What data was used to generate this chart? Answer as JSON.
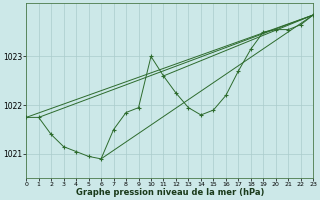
{
  "xlabel": "Graphe pression niveau de la mer (hPa)",
  "bg_color": "#cce8e8",
  "grid_color": "#aacccc",
  "line_color": "#2d6b2d",
  "x_min": 0,
  "x_max": 23,
  "y_min": 1020.5,
  "y_max": 1024.1,
  "yticks": [
    1021,
    1022,
    1023
  ],
  "xticks": [
    0,
    1,
    2,
    3,
    4,
    5,
    6,
    7,
    8,
    9,
    10,
    11,
    12,
    13,
    14,
    15,
    16,
    17,
    18,
    19,
    20,
    21,
    22,
    23
  ],
  "series": [
    [
      0,
      1021.75
    ],
    [
      1,
      1021.75
    ],
    [
      2,
      1021.4
    ],
    [
      3,
      1021.15
    ],
    [
      4,
      1021.05
    ],
    [
      5,
      1020.95
    ],
    [
      6,
      1020.9
    ],
    [
      7,
      1021.5
    ],
    [
      8,
      1021.85
    ],
    [
      9,
      1021.95
    ],
    [
      10,
      1023.0
    ],
    [
      11,
      1022.6
    ],
    [
      12,
      1022.25
    ],
    [
      13,
      1021.95
    ],
    [
      14,
      1021.8
    ],
    [
      15,
      1021.9
    ],
    [
      16,
      1022.2
    ],
    [
      17,
      1022.7
    ],
    [
      18,
      1023.15
    ],
    [
      19,
      1023.5
    ],
    [
      20,
      1023.55
    ],
    [
      21,
      1023.55
    ],
    [
      22,
      1023.65
    ],
    [
      23,
      1023.85
    ]
  ],
  "straight_lines": [
    [
      [
        0,
        1021.75
      ],
      [
        23,
        1023.85
      ]
    ],
    [
      [
        1,
        1021.75
      ],
      [
        23,
        1023.85
      ]
    ],
    [
      [
        6,
        1020.9
      ],
      [
        23,
        1023.85
      ]
    ],
    [
      [
        11,
        1022.6
      ],
      [
        23,
        1023.85
      ]
    ]
  ]
}
